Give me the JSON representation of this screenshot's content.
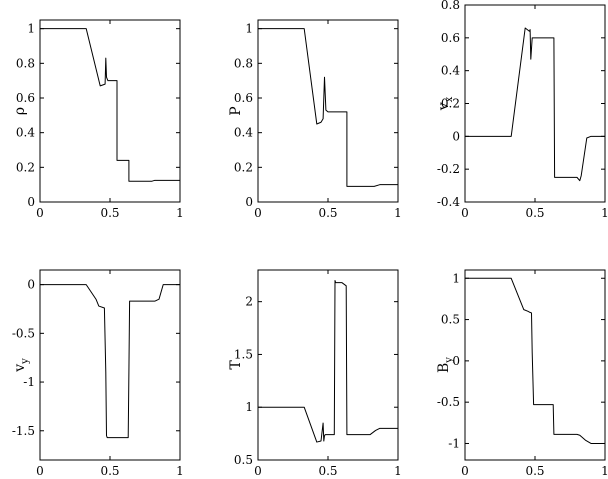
{
  "chart_data": [
    {
      "type": "line",
      "ylabel": "ρ",
      "xlim": [
        0,
        1
      ],
      "ylim": [
        0,
        1.05
      ],
      "xticks": [
        0,
        0.5,
        1
      ],
      "xtick_labels": [
        "0",
        "0.5",
        "1"
      ],
      "yticks": [
        0,
        0.2,
        0.4,
        0.6,
        0.8,
        1
      ],
      "ytick_labels": [
        "0",
        "0.2",
        "0.4",
        "0.6",
        "0.8",
        "1"
      ],
      "grid": false,
      "series": [
        {
          "x": [
            0,
            0.33,
            0.43,
            0.465,
            0.47,
            0.475,
            0.485,
            0.49,
            0.5,
            0.545,
            0.55,
            0.55,
            0.63,
            0.635,
            0.635,
            0.8,
            0.82,
            1
          ],
          "y": [
            1,
            1,
            0.67,
            0.68,
            0.83,
            0.72,
            0.7,
            0.7,
            0.7,
            0.7,
            0.7,
            0.24,
            0.24,
            0.24,
            0.12,
            0.12,
            0.125,
            0.125
          ]
        }
      ]
    },
    {
      "type": "line",
      "ylabel": "P",
      "xlim": [
        0,
        1
      ],
      "ylim": [
        0,
        1.05
      ],
      "xticks": [
        0,
        0.5,
        1
      ],
      "xtick_labels": [
        "0",
        "0.5",
        "1"
      ],
      "yticks": [
        0,
        0.2,
        0.4,
        0.6,
        0.8,
        1
      ],
      "ytick_labels": [
        "0",
        "0.2",
        "0.4",
        "0.6",
        "0.8",
        "1"
      ],
      "grid": false,
      "series": [
        {
          "x": [
            0,
            0.33,
            0.42,
            0.45,
            0.465,
            0.475,
            0.485,
            0.5,
            0.63,
            0.635,
            0.635,
            0.8,
            0.83,
            0.87,
            1
          ],
          "y": [
            1,
            1,
            0.45,
            0.46,
            0.48,
            0.72,
            0.53,
            0.52,
            0.52,
            0.52,
            0.09,
            0.09,
            0.09,
            0.1,
            0.1
          ]
        }
      ]
    },
    {
      "type": "line",
      "ylabel": "v",
      "ylabel_subscript": "x",
      "xlim": [
        0,
        1
      ],
      "ylim": [
        -0.4,
        0.8
      ],
      "xticks": [
        0,
        0.5,
        1
      ],
      "xtick_labels": [
        "0",
        "0.5",
        "1"
      ],
      "yticks": [
        -0.4,
        -0.2,
        0,
        0.2,
        0.4,
        0.6,
        0.8
      ],
      "ytick_labels": [
        "-0.4",
        "-0.2",
        "0",
        "0.2",
        "0.4",
        "0.6",
        "0.8"
      ],
      "grid": false,
      "series": [
        {
          "x": [
            0,
            0.33,
            0.43,
            0.46,
            0.465,
            0.47,
            0.48,
            0.5,
            0.63,
            0.635,
            0.64,
            0.8,
            0.82,
            0.83,
            0.87,
            0.9,
            1
          ],
          "y": [
            0,
            0,
            0.66,
            0.64,
            0.65,
            0.47,
            0.6,
            0.6,
            0.6,
            0.6,
            -0.25,
            -0.25,
            -0.27,
            -0.24,
            -0.01,
            0,
            0
          ]
        }
      ]
    },
    {
      "type": "line",
      "ylabel": "v",
      "ylabel_subscript": "y",
      "xlim": [
        0,
        1
      ],
      "ylim": [
        -1.8,
        0.15
      ],
      "xticks": [
        0,
        0.5,
        1
      ],
      "xtick_labels": [
        "0",
        "0.5",
        "1"
      ],
      "yticks": [
        -1.5,
        -1,
        -0.5,
        0
      ],
      "ytick_labels": [
        "-1.5",
        "-1",
        "-0.5",
        "0"
      ],
      "grid": false,
      "series": [
        {
          "x": [
            0,
            0.33,
            0.4,
            0.42,
            0.46,
            0.47,
            0.475,
            0.48,
            0.5,
            0.63,
            0.635,
            0.64,
            0.8,
            0.82,
            0.85,
            0.88,
            1
          ],
          "y": [
            0,
            0,
            -0.15,
            -0.22,
            -0.24,
            -0.9,
            -1.55,
            -1.57,
            -1.57,
            -1.57,
            -0.9,
            -0.17,
            -0.17,
            -0.17,
            -0.15,
            0,
            0
          ]
        }
      ]
    },
    {
      "type": "line",
      "ylabel": "T",
      "xlim": [
        0,
        1
      ],
      "ylim": [
        0.5,
        2.3
      ],
      "xticks": [
        0,
        0.5,
        1
      ],
      "xtick_labels": [
        "0",
        "0.5",
        "1"
      ],
      "yticks": [
        0.5,
        1,
        1.5,
        2
      ],
      "ytick_labels": [
        "0.5",
        "1",
        "1.5",
        "2"
      ],
      "grid": false,
      "series": [
        {
          "x": [
            0,
            0.33,
            0.42,
            0.45,
            0.465,
            0.47,
            0.475,
            0.48,
            0.5,
            0.545,
            0.55,
            0.555,
            0.6,
            0.63,
            0.635,
            0.64,
            0.8,
            0.84,
            0.87,
            1
          ],
          "y": [
            1,
            1,
            0.67,
            0.68,
            0.85,
            0.68,
            0.73,
            0.74,
            0.74,
            0.74,
            2.2,
            2.18,
            2.18,
            2.15,
            0.74,
            0.74,
            0.74,
            0.78,
            0.8,
            0.8
          ]
        }
      ]
    },
    {
      "type": "line",
      "ylabel": "B",
      "ylabel_subscript": "y",
      "xlim": [
        0,
        1
      ],
      "ylim": [
        -1.2,
        1.1
      ],
      "xticks": [
        0,
        0.5,
        1
      ],
      "xtick_labels": [
        "0",
        "0.5",
        "1"
      ],
      "yticks": [
        -1,
        -0.5,
        0,
        0.5,
        1
      ],
      "ytick_labels": [
        "-1",
        "-0.5",
        "0",
        "0.5",
        "1"
      ],
      "grid": false,
      "series": [
        {
          "x": [
            0,
            0.33,
            0.42,
            0.45,
            0.46,
            0.475,
            0.48,
            0.49,
            0.5,
            0.63,
            0.635,
            0.64,
            0.8,
            0.82,
            0.86,
            0.9,
            1
          ],
          "y": [
            1,
            1,
            0.62,
            0.6,
            0.59,
            0.58,
            0.1,
            -0.53,
            -0.53,
            -0.53,
            -0.89,
            -0.89,
            -0.89,
            -0.9,
            -0.96,
            -1,
            -1
          ]
        }
      ]
    }
  ]
}
